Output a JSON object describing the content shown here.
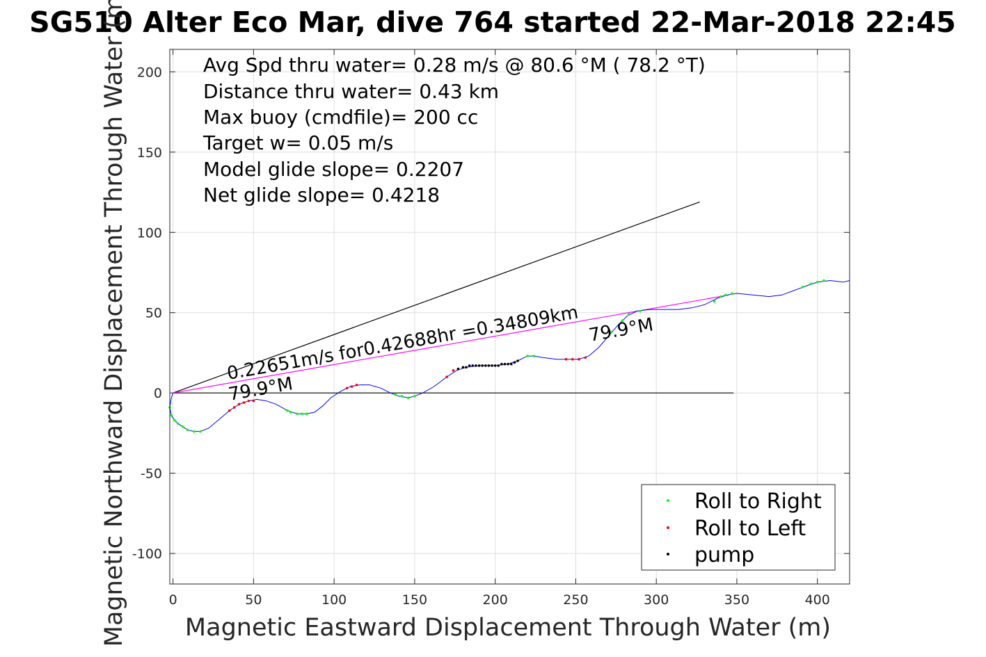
{
  "chart_data": {
    "type": "line",
    "title": "SG510 Alter Eco Mar, dive 764 started 22-Mar-2018 22:45",
    "xlabel": "Magnetic Eastward Displacement Through Water (m)",
    "ylabel": "Magnetic Northward Displacement Through Water (m)",
    "xlim": [
      -2,
      420
    ],
    "ylim": [
      -119,
      214
    ],
    "xticks": [
      0,
      50,
      100,
      150,
      200,
      250,
      300,
      350,
      400
    ],
    "yticks": [
      -100,
      -50,
      0,
      50,
      100,
      150,
      200
    ],
    "grid": true,
    "legend_position": "bottom-right",
    "annotations": [
      "Avg Spd thru water=  0.28 m/s @  80.6 °M ( 78.2 °T)",
      "Distance thru water=  0.43 km",
      "Max buoy (cmdfile)= 200 cc",
      "Target w= 0.05 m/s",
      "Model glide slope= 0.2207",
      "Net glide slope= 0.4218"
    ],
    "line_labels": {
      "speed": "0.22651m/s for0.42688hr =0.34809km",
      "heading_start": "79.9°M",
      "heading_end": "79.9°M"
    },
    "track_color": "#0000ff",
    "series": [
      {
        "name": "Roll to Right",
        "color": "#00ff00",
        "points": [
          [
            -2,
            -9
          ],
          [
            -1,
            -14
          ],
          [
            1,
            -17
          ],
          [
            3,
            -19
          ],
          [
            6,
            -21
          ],
          [
            9,
            -23
          ],
          [
            13,
            -24
          ],
          [
            17,
            -24
          ],
          [
            71,
            -11
          ],
          [
            73,
            -12
          ],
          [
            77,
            -13
          ],
          [
            80,
            -13
          ],
          [
            83,
            -13
          ],
          [
            138,
            -1
          ],
          [
            142,
            -2
          ],
          [
            146,
            -3
          ],
          [
            150,
            -2
          ],
          [
            220,
            23
          ],
          [
            224,
            23
          ],
          [
            272,
            38
          ],
          [
            279,
            45
          ],
          [
            283,
            49
          ],
          [
            290,
            51
          ],
          [
            336,
            57
          ],
          [
            340,
            60
          ],
          [
            343,
            61
          ],
          [
            347,
            62
          ],
          [
            391,
            66
          ],
          [
            396,
            68
          ],
          [
            400,
            69
          ],
          [
            404,
            70
          ]
        ]
      },
      {
        "name": "Roll to Left",
        "color": "#ff0000",
        "points": [
          [
            35,
            -11
          ],
          [
            38,
            -9
          ],
          [
            41,
            -7
          ],
          [
            44,
            -6
          ],
          [
            47,
            -5
          ],
          [
            50,
            -5
          ],
          [
            108,
            3
          ],
          [
            111,
            4
          ],
          [
            114,
            5
          ],
          [
            170,
            10
          ],
          [
            174,
            14
          ],
          [
            244,
            21
          ],
          [
            248,
            21
          ],
          [
            252,
            21
          ],
          [
            256,
            22
          ]
        ]
      },
      {
        "name": "pump",
        "color": "#000000",
        "points": [
          [
            177,
            15
          ],
          [
            180,
            16
          ],
          [
            182,
            16
          ],
          [
            184,
            17
          ],
          [
            186,
            17
          ],
          [
            188,
            17
          ],
          [
            190,
            17
          ],
          [
            192,
            17
          ],
          [
            194,
            17
          ],
          [
            196,
            17
          ],
          [
            198,
            17
          ],
          [
            200,
            17
          ],
          [
            202,
            17
          ],
          [
            204,
            18
          ],
          [
            206,
            18
          ],
          [
            208,
            18
          ],
          [
            210,
            18
          ],
          [
            212,
            19
          ],
          [
            214,
            20
          ]
        ]
      }
    ],
    "track": [
      [
        0,
        0
      ],
      [
        -1,
        -3
      ],
      [
        -2,
        -9
      ],
      [
        -1,
        -14
      ],
      [
        1,
        -17
      ],
      [
        3,
        -19
      ],
      [
        6,
        -21
      ],
      [
        9,
        -23
      ],
      [
        13,
        -24
      ],
      [
        17,
        -24
      ],
      [
        22,
        -22
      ],
      [
        28,
        -17
      ],
      [
        35,
        -11
      ],
      [
        38,
        -9
      ],
      [
        41,
        -7
      ],
      [
        44,
        -6
      ],
      [
        47,
        -5
      ],
      [
        52,
        -4
      ],
      [
        58,
        -5
      ],
      [
        64,
        -7
      ],
      [
        71,
        -11
      ],
      [
        77,
        -13
      ],
      [
        83,
        -13
      ],
      [
        88,
        -12
      ],
      [
        93,
        -8
      ],
      [
        98,
        -3
      ],
      [
        104,
        1
      ],
      [
        110,
        4
      ],
      [
        116,
        5
      ],
      [
        122,
        5
      ],
      [
        129,
        3
      ],
      [
        135,
        0
      ],
      [
        140,
        -2
      ],
      [
        146,
        -3
      ],
      [
        150,
        -2
      ],
      [
        155,
        0
      ],
      [
        162,
        4
      ],
      [
        170,
        10
      ],
      [
        176,
        14
      ],
      [
        182,
        16
      ],
      [
        190,
        17
      ],
      [
        200,
        17
      ],
      [
        208,
        18
      ],
      [
        214,
        20
      ],
      [
        220,
        23
      ],
      [
        224,
        23
      ],
      [
        230,
        22
      ],
      [
        238,
        21
      ],
      [
        246,
        21
      ],
      [
        252,
        21
      ],
      [
        258,
        23
      ],
      [
        264,
        28
      ],
      [
        270,
        35
      ],
      [
        276,
        42
      ],
      [
        282,
        48
      ],
      [
        288,
        51
      ],
      [
        296,
        52
      ],
      [
        305,
        52
      ],
      [
        314,
        52
      ],
      [
        322,
        53
      ],
      [
        330,
        55
      ],
      [
        338,
        59
      ],
      [
        344,
        61
      ],
      [
        350,
        62
      ],
      [
        360,
        61
      ],
      [
        370,
        60
      ],
      [
        378,
        61
      ],
      [
        386,
        64
      ],
      [
        394,
        67
      ],
      [
        400,
        69
      ],
      [
        408,
        70
      ],
      [
        416,
        69
      ],
      [
        420,
        70
      ]
    ],
    "lines": [
      {
        "from": [
          0,
          0
        ],
        "to": [
          327,
          119
        ],
        "color": "#000000"
      },
      {
        "from": [
          0,
          0
        ],
        "to": [
          348,
          0
        ],
        "color": "#000000"
      },
      {
        "from": [
          0,
          0
        ],
        "to": [
          345,
          61
        ],
        "color": "#ff00ff"
      }
    ]
  },
  "legend": {
    "entries": [
      {
        "label": "Roll to Right",
        "color": "#00ff00"
      },
      {
        "label": "Roll to Left",
        "color": "#ff0000"
      },
      {
        "label": "pump",
        "color": "#000000"
      }
    ]
  }
}
